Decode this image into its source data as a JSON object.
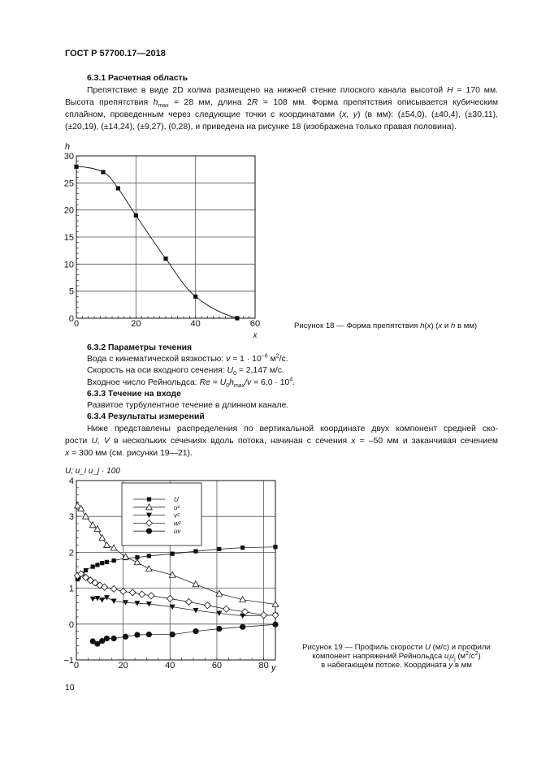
{
  "header": "ГОСТ Р 57700.17—2018",
  "page_number": "10",
  "sec631": {
    "title": "6.3.1 Расчетная область",
    "lines": [
      [
        [
          "Препятствие в виде 2D холма размещено на нижней стенке плоского канала высотой ",
          ""
        ],
        [
          "H",
          "i"
        ],
        [
          " = 170 мм.",
          ""
        ]
      ],
      [
        [
          "Высота препятствия ",
          ""
        ],
        [
          "h",
          "i"
        ],
        [
          "max",
          "sub"
        ],
        [
          " = 28 мм, длина 2",
          ""
        ],
        [
          "R",
          "i"
        ],
        [
          " = 108 мм. Форма препятствия описывается кубическим",
          ""
        ]
      ],
      [
        [
          "сплайном, проведенным через следующие точки с координатами (",
          ""
        ],
        [
          "x, y",
          "i"
        ],
        [
          ") (в мм): (±54,0), (±40,4), (±30,11),",
          ""
        ]
      ],
      [
        [
          "(±20,19), (±14,24), (±9,27), (0,28), и приведена на рисунке 18 (изображена только правая половина).",
          ""
        ]
      ]
    ]
  },
  "sec632": {
    "title": "6.3.2 Параметры течения",
    "lines": [
      [
        [
          "Вода с кинематической вязкостью: ",
          ""
        ],
        [
          "v",
          "i"
        ],
        [
          " = 1 · 10",
          ""
        ],
        [
          "−6",
          "sup"
        ],
        [
          " м",
          ""
        ],
        [
          "2",
          "sup"
        ],
        [
          "/с.",
          ""
        ]
      ],
      [
        [
          "Скорость на оси входного сечения: ",
          ""
        ],
        [
          "U",
          "i"
        ],
        [
          "0",
          "sub"
        ],
        [
          " = 2,147 м/с.",
          ""
        ]
      ],
      [
        [
          "Входное число Рейнольдса: ",
          ""
        ],
        [
          "Re",
          "i"
        ],
        [
          " = ",
          ""
        ],
        [
          "U",
          "i"
        ],
        [
          "0",
          "sub"
        ],
        [
          "h",
          "i"
        ],
        [
          "max",
          "sub"
        ],
        [
          "/",
          "i"
        ],
        [
          "v",
          "i"
        ],
        [
          " = 6,0 · 10",
          ""
        ],
        [
          "4",
          "sup"
        ],
        [
          ".",
          ""
        ]
      ]
    ]
  },
  "sec633": {
    "title": "6.3.3 Течение на входе",
    "lines": [
      [
        [
          "Развитое турбулентное течение в длинном канале.",
          ""
        ]
      ]
    ]
  },
  "sec634": {
    "title": "6.3.4 Результаты измерений",
    "lines": [
      [
        [
          "Ниже представлены распределения по вертикальной координате двух компонент средней ско-",
          ""
        ]
      ],
      [
        [
          "рости ",
          ""
        ],
        [
          "U, V",
          "i"
        ],
        [
          " в нескольких сечениях вдоль потока, начиная с сечения ",
          ""
        ],
        [
          "x",
          "i"
        ],
        [
          " = –50 мм и заканчивая сечением",
          ""
        ]
      ],
      [
        [
          "x",
          "i"
        ],
        [
          " = 300 мм (см. рисунки 19—21).",
          ""
        ]
      ]
    ]
  },
  "fig18_caption": [
    [
      "Рисунок 18 — Форма препятствия ",
      ""
    ],
    [
      "h",
      "i"
    ],
    [
      "(",
      ""
    ],
    [
      "x",
      "i"
    ],
    [
      ") (",
      ""
    ],
    [
      "x",
      "i"
    ],
    [
      " и ",
      ""
    ],
    [
      "h",
      "i"
    ],
    [
      " в мм)",
      ""
    ]
  ],
  "fig19_caption": [
    [
      [
        "Рисунок 19 — Профиль скорости ",
        ""
      ],
      [
        "U",
        "i"
      ],
      [
        " (м/с) и профили",
        ""
      ]
    ],
    [
      [
        "компонент напряжений Рейнольдса ",
        ""
      ],
      [
        "u",
        "i"
      ],
      [
        "i",
        "sub"
      ],
      [
        "u",
        "i"
      ],
      [
        "j",
        "sub"
      ],
      [
        " (м",
        ""
      ],
      [
        "2",
        "sup"
      ],
      [
        "/с",
        ""
      ],
      [
        "2",
        "sup"
      ],
      [
        ")",
        ""
      ]
    ],
    [
      [
        "в набегающем потоке. Координата ",
        ""
      ],
      [
        "y",
        "i"
      ],
      [
        " в мм",
        ""
      ]
    ]
  ],
  "chart_data": [
    {
      "type": "line",
      "xlabel": "x",
      "ylabel": "h",
      "xlim": [
        0,
        60
      ],
      "ylim": [
        0,
        30
      ],
      "xticks": [
        "0",
        "20",
        "40",
        "60"
      ],
      "yticks": [
        "0",
        "5",
        "10",
        "15",
        "20",
        "25",
        "30"
      ],
      "grid": true,
      "series": [
        {
          "x": [
            0,
            9,
            14,
            20,
            30,
            40,
            54
          ],
          "y": [
            28,
            27,
            24,
            19,
            11,
            4,
            0
          ],
          "marker": "square",
          "curve": "cubic spline"
        }
      ]
    },
    {
      "type": "line",
      "xlabel": "y",
      "ylabel": "U; u_i u_j · 100",
      "xlim": [
        0,
        85
      ],
      "ylim": [
        -1,
        4
      ],
      "xticks": [
        "0",
        "20",
        "40",
        "60",
        "80"
      ],
      "yticks": [
        "−1",
        "0",
        "1",
        "2",
        "3",
        "4"
      ],
      "grid": true,
      "legend": "top-center",
      "series": [
        {
          "name": "U",
          "marker": "filled-square",
          "x": [
            0.5,
            1,
            2.5,
            4,
            7,
            9,
            11,
            13,
            16,
            21,
            26,
            31,
            41,
            51,
            61,
            71,
            85
          ],
          "y": [
            1.25,
            1.3,
            1.4,
            1.5,
            1.6,
            1.65,
            1.7,
            1.73,
            1.77,
            1.84,
            1.86,
            1.9,
            1.96,
            2.03,
            2.09,
            2.13,
            2.15
          ]
        },
        {
          "name": "u²",
          "marker": "open-triangle-up",
          "x": [
            0.5,
            2,
            4,
            7,
            9,
            11,
            13,
            16,
            21,
            26,
            31,
            41,
            51,
            61,
            71,
            85
          ],
          "y": [
            3.3,
            3.22,
            3.0,
            2.76,
            2.65,
            2.4,
            2.2,
            2.12,
            1.87,
            1.72,
            1.54,
            1.37,
            1.11,
            0.85,
            0.68,
            0.55
          ]
        },
        {
          "name": "v²",
          "marker": "filled-triangle-down",
          "x": [
            7,
            9,
            11,
            13,
            16,
            21,
            26,
            31,
            41,
            51,
            61,
            71,
            85
          ],
          "y": [
            0.7,
            0.72,
            0.67,
            0.74,
            0.64,
            0.6,
            0.58,
            0.56,
            0.48,
            0.38,
            0.3,
            0.23,
            0.25
          ]
        },
        {
          "name": "w²",
          "marker": "open-diamond",
          "x": [
            0.5,
            2,
            4,
            6,
            8,
            10,
            12,
            16,
            20,
            24,
            28,
            32,
            40,
            48,
            56,
            64,
            72,
            80,
            85
          ],
          "y": [
            1.35,
            1.4,
            1.3,
            1.22,
            1.15,
            1.08,
            1.03,
            0.98,
            0.91,
            0.88,
            0.83,
            0.79,
            0.71,
            0.62,
            0.52,
            0.42,
            0.34,
            0.25,
            0.25
          ]
        },
        {
          "name": "uv",
          "marker": "filled-circle",
          "x": [
            7,
            9,
            11,
            13,
            16,
            21,
            26,
            31,
            41,
            51,
            61,
            71,
            85
          ],
          "y": [
            -0.48,
            -0.55,
            -0.47,
            -0.4,
            -0.4,
            -0.35,
            -0.3,
            -0.29,
            -0.29,
            -0.2,
            -0.13,
            -0.08,
            -0.01
          ]
        }
      ]
    }
  ]
}
